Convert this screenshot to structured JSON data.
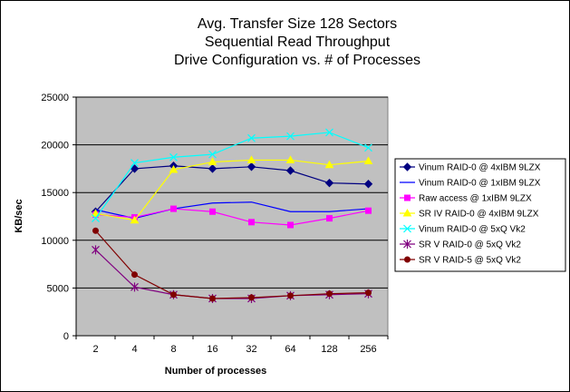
{
  "chart_data": {
    "type": "line",
    "title": [
      "Avg. Transfer Size 128 Sectors",
      "Sequential Read Throughput",
      "Drive Configuration vs. # of Processes"
    ],
    "xlabel": "Number of processes",
    "ylabel": "KB/sec",
    "categories": [
      "2",
      "4",
      "8",
      "16",
      "32",
      "64",
      "128",
      "256"
    ],
    "ylim": [
      0,
      25000
    ],
    "yticks": [
      0,
      5000,
      10000,
      15000,
      20000,
      25000
    ],
    "y_tick_labels": [
      "0",
      "5000",
      "10000",
      "15000",
      "20000",
      "25000"
    ],
    "grid": true,
    "plot_background": "#c0c0c0",
    "legend_position": "right",
    "series": [
      {
        "name": "Vinum RAID-0 @ 4xIBM 9LZX",
        "color": "#000080",
        "marker": "diamond",
        "values": [
          13000,
          17500,
          17800,
          17500,
          17700,
          17300,
          16000,
          15900
        ]
      },
      {
        "name": "Vinum RAID-0 @ 1xIBM 9LZX",
        "color": "#0000ff",
        "marker": "none",
        "values": [
          13200,
          12300,
          13300,
          13900,
          14000,
          13000,
          13000,
          13300
        ]
      },
      {
        "name": "Raw access @ 1xIBM 9LZX",
        "color": "#ff00ff",
        "marker": "square",
        "values": [
          12700,
          12400,
          13300,
          13000,
          11900,
          11600,
          12300,
          13100
        ]
      },
      {
        "name": "SR IV RAID-0 @ 4xIBM 9LZX",
        "color": "#ffff00",
        "marker": "triangle",
        "values": [
          12800,
          12100,
          17400,
          18200,
          18400,
          18400,
          17900,
          18300
        ]
      },
      {
        "name": "Vinum RAID-0 @ 5xQ Vk2",
        "color": "#00ffff",
        "marker": "x",
        "values": [
          12300,
          18100,
          18700,
          19000,
          20700,
          20900,
          21300,
          19700
        ]
      },
      {
        "name": "SR V RAID-0 @ 5xQ Vk2",
        "color": "#800080",
        "marker": "star",
        "values": [
          9000,
          5100,
          4300,
          3900,
          3900,
          4200,
          4300,
          4400
        ]
      },
      {
        "name": "SR V RAID-5 @ 5xQ Vk2",
        "color": "#800000",
        "marker": "circle",
        "values": [
          11000,
          6400,
          4300,
          3900,
          4000,
          4200,
          4400,
          4500
        ]
      }
    ]
  }
}
